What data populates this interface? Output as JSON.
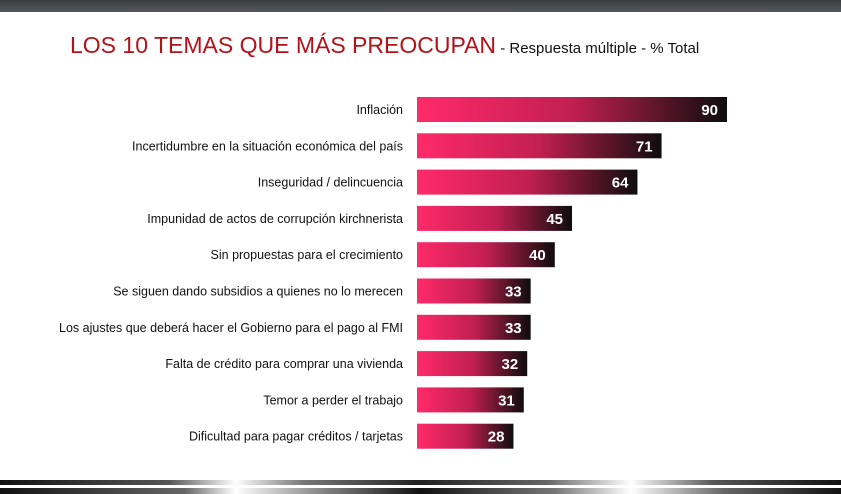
{
  "header": {
    "title": "LOS 10 TEMAS QUE MÁS PREOCUPAN",
    "subtitle": " - Respuesta múltiple - % Total"
  },
  "chart_data": {
    "type": "bar",
    "orientation": "horizontal",
    "title": "LOS 10 TEMAS QUE MÁS PREOCUPAN",
    "subtitle": "Respuesta múltiple - % Total",
    "categories": [
      "Inflación",
      "Incertidumbre en la situación económica del país",
      "Inseguridad / delincuencia",
      "Impunidad de actos de corrupción kirchnerista",
      "Sin propuestas para el crecimiento",
      "Se siguen dando subsidios a quienes no lo merecen",
      "Los ajustes que deberá hacer el Gobierno para el pago al FMI",
      "Falta de crédito para comprar una vivienda",
      "Temor a perder el trabajo",
      "Dificultad para pagar créditos / tarjetas"
    ],
    "values": [
      90,
      71,
      64,
      45,
      40,
      33,
      33,
      32,
      31,
      28
    ],
    "xlim": [
      0,
      90
    ],
    "grid": false,
    "colors": {
      "start": "#ff2a6a",
      "end": "#0d0d0d"
    }
  }
}
